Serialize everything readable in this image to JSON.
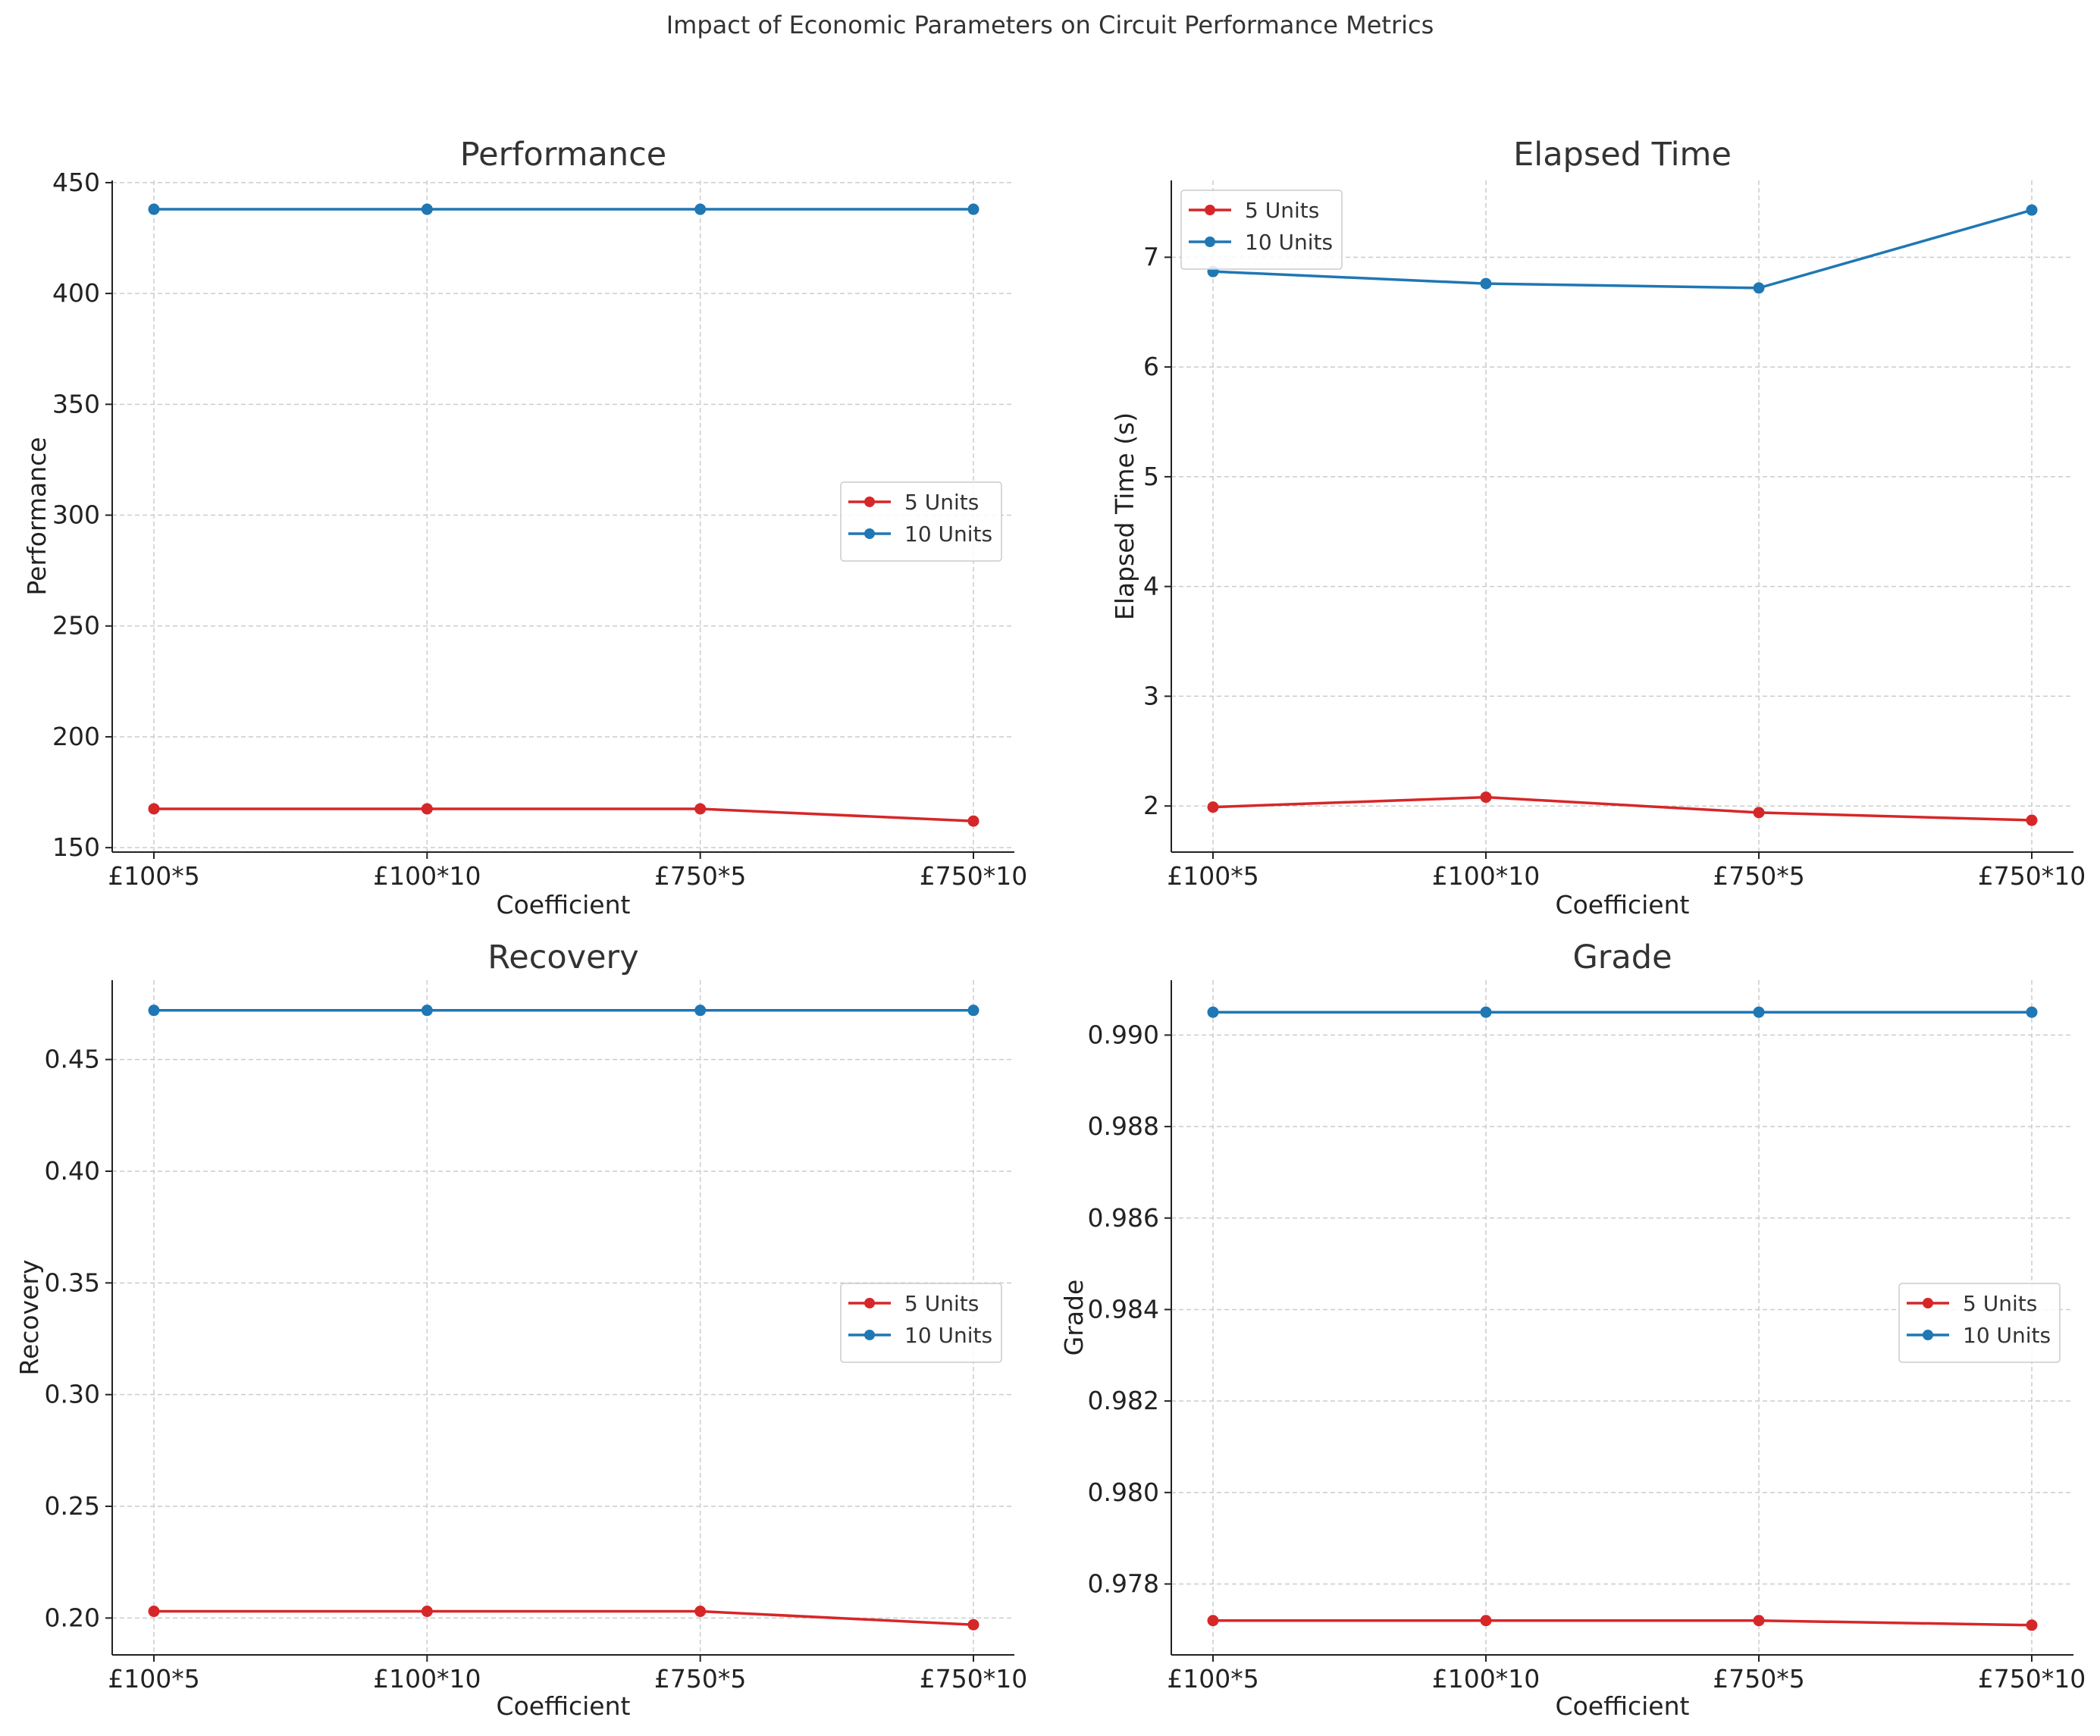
{
  "figure_title": "Impact of Economic Parameters on Circuit Performance Metrics",
  "colors": {
    "five_units": "#d62728",
    "ten_units": "#1f77b4",
    "grid": "#cccccc",
    "axis": "#222222"
  },
  "chart_data": [
    {
      "type": "line",
      "title": "Performance",
      "xlabel": "Coefficient",
      "ylabel": "Performance",
      "categories": [
        "£100*5",
        "£100*10",
        "£750*5",
        "£750*10"
      ],
      "ylim": [
        148,
        451
      ],
      "yticks": [
        150,
        200,
        250,
        300,
        350,
        400,
        450
      ],
      "ytick_labels": [
        "150",
        "200",
        "250",
        "300",
        "350",
        "400",
        "450"
      ],
      "grid": true,
      "legend_position": "center-right",
      "series": [
        {
          "name": "5 Units",
          "color": "#d62728",
          "values": [
            167.5,
            167.5,
            167.5,
            162
          ]
        },
        {
          "name": "10 Units",
          "color": "#1f77b4",
          "values": [
            438,
            438,
            438,
            438
          ]
        }
      ]
    },
    {
      "type": "line",
      "title": "Elapsed Time",
      "xlabel": "Coefficient",
      "ylabel": "Elapsed Time (s)",
      "categories": [
        "£100*5",
        "£100*10",
        "£750*5",
        "£750*10"
      ],
      "ylim": [
        1.58,
        7.7
      ],
      "yticks": [
        2,
        3,
        4,
        5,
        6,
        7
      ],
      "ytick_labels": [
        "2",
        "3",
        "4",
        "5",
        "6",
        "7"
      ],
      "grid": true,
      "legend_position": "upper-left",
      "series": [
        {
          "name": "5 Units",
          "color": "#d62728",
          "values": [
            1.99,
            2.08,
            1.94,
            1.87
          ]
        },
        {
          "name": "10 Units",
          "color": "#1f77b4",
          "values": [
            6.87,
            6.76,
            6.72,
            7.43
          ]
        }
      ]
    },
    {
      "type": "line",
      "title": "Recovery",
      "xlabel": "Coefficient",
      "ylabel": "Recovery",
      "categories": [
        "£100*5",
        "£100*10",
        "£750*5",
        "£750*10"
      ],
      "ylim": [
        0.1835,
        0.4855
      ],
      "yticks": [
        0.2,
        0.25,
        0.3,
        0.35,
        0.4,
        0.45
      ],
      "ytick_labels": [
        "0.20",
        "0.25",
        "0.30",
        "0.35",
        "0.40",
        "0.45"
      ],
      "grid": true,
      "legend_position": "center-right",
      "series": [
        {
          "name": "5 Units",
          "color": "#d62728",
          "values": [
            0.203,
            0.203,
            0.203,
            0.197
          ]
        },
        {
          "name": "10 Units",
          "color": "#1f77b4",
          "values": [
            0.472,
            0.472,
            0.472,
            0.472
          ]
        }
      ]
    },
    {
      "type": "line",
      "title": "Grade",
      "xlabel": "Coefficient",
      "ylabel": "Grade",
      "categories": [
        "£100*5",
        "£100*10",
        "£750*5",
        "£750*10"
      ],
      "ylim": [
        0.97645,
        0.9912
      ],
      "yticks": [
        0.978,
        0.98,
        0.982,
        0.984,
        0.986,
        0.988,
        0.99
      ],
      "ytick_labels": [
        "0.978",
        "0.980",
        "0.982",
        "0.984",
        "0.986",
        "0.988",
        "0.990"
      ],
      "grid": true,
      "legend_position": "center-right",
      "series": [
        {
          "name": "5 Units",
          "color": "#d62728",
          "values": [
            0.9772,
            0.9772,
            0.9772,
            0.9771
          ]
        },
        {
          "name": "10 Units",
          "color": "#1f77b4",
          "values": [
            0.9905,
            0.9905,
            0.9905,
            0.9905
          ]
        }
      ]
    }
  ]
}
